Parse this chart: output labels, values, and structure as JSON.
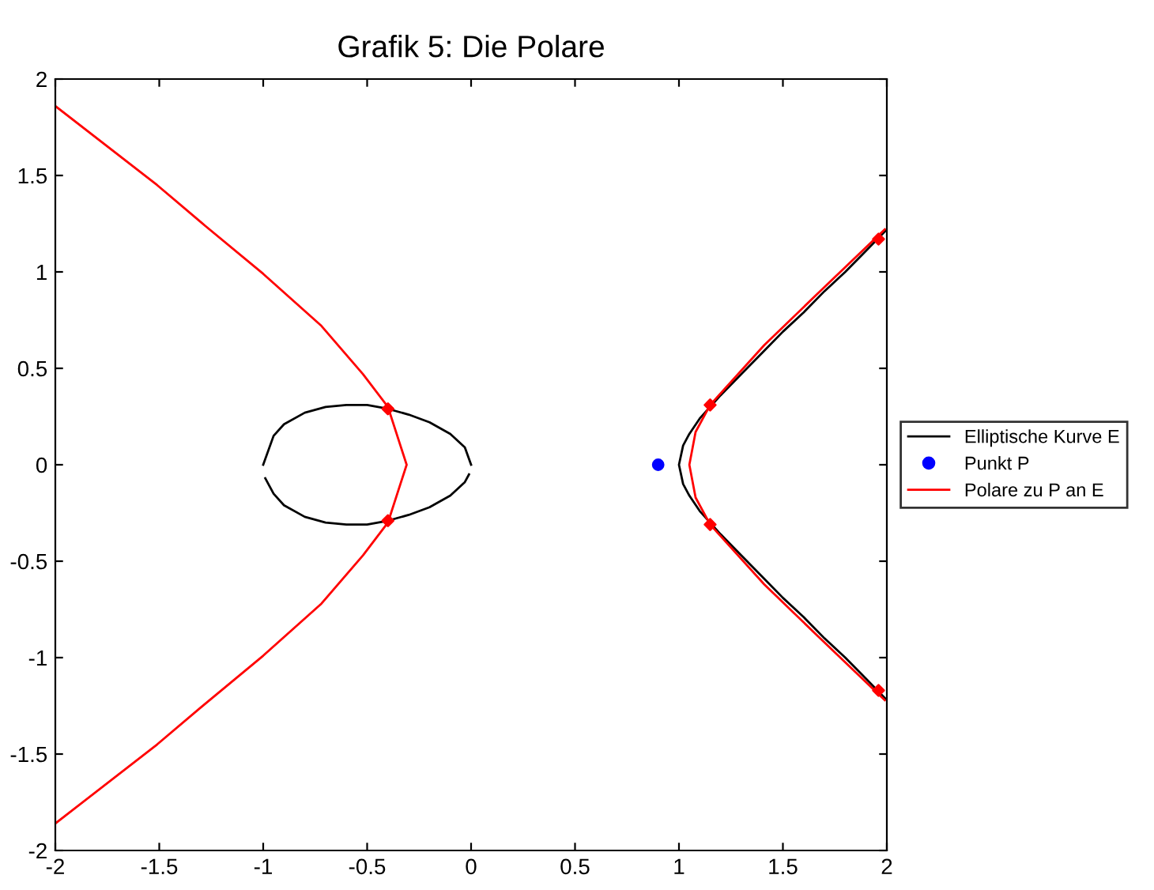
{
  "chart_data": {
    "type": "line",
    "title": "Grafik 5: Die Polare",
    "xlim": [
      -2,
      2
    ],
    "ylim": [
      -2,
      2
    ],
    "xticks": [
      -2,
      -1.5,
      -1,
      -0.5,
      0,
      0.5,
      1,
      1.5,
      2
    ],
    "yticks": [
      -2,
      -1.5,
      -1,
      -0.5,
      0,
      0.5,
      1,
      1.5,
      2
    ],
    "grid": false,
    "legend": "right",
    "series": [
      {
        "name": "Elliptische Kurve E",
        "type": "line",
        "color": "#000000",
        "marker": "none",
        "x": [
          -1,
          -0.95,
          -0.9,
          -0.8,
          -0.7,
          -0.6,
          -0.5,
          -0.4,
          -0.3,
          -0.2,
          -0.1,
          -0.03,
          0
        ],
        "values": [
          0,
          0.15,
          0.21,
          0.27,
          0.3,
          0.31,
          0.31,
          0.29,
          0.26,
          0.22,
          0.16,
          0.09,
          0
        ]
      },
      {
        "color": "#000000",
        "marker": "none",
        "x": [
          -0.99,
          -0.95,
          -0.9,
          -0.8,
          -0.7,
          -0.6,
          -0.5,
          -0.4,
          -0.3,
          -0.2,
          -0.1,
          -0.03,
          -0.01
        ],
        "values": [
          -0.07,
          -0.15,
          -0.21,
          -0.27,
          -0.3,
          -0.31,
          -0.31,
          -0.29,
          -0.26,
          -0.22,
          -0.16,
          -0.09,
          -0.05
        ]
      },
      {
        "type": "line",
        "color": "#000000",
        "marker": "none",
        "x": [
          2,
          1.9,
          1.8,
          1.7,
          1.6,
          1.5,
          1.4,
          1.3,
          1.2,
          1.1,
          1.05,
          1.02,
          1,
          1.02,
          1.05,
          1.1,
          1.2,
          1.3,
          1.4,
          1.5,
          1.6,
          1.7,
          1.8,
          1.9,
          2
        ],
        "values": [
          1.22,
          1.11,
          1.0,
          0.9,
          0.79,
          0.69,
          0.58,
          0.47,
          0.36,
          0.24,
          0.16,
          0.1,
          0,
          -0.1,
          -0.16,
          -0.24,
          -0.36,
          -0.47,
          -0.58,
          -0.69,
          -0.79,
          -0.9,
          -1.0,
          -1.11,
          -1.22
        ]
      },
      {
        "name": "Punkt P",
        "type": "scatter",
        "color": "#0000ff",
        "marker": "circle",
        "x": [
          0.9
        ],
        "values": [
          0
        ]
      },
      {
        "name": "Polare zu P an E",
        "color": "#ff0000",
        "marker": "none",
        "x": [
          -2,
          -1.51,
          -1.28,
          -1.0,
          -0.72,
          -0.52,
          -0.4,
          -0.31,
          -0.4,
          -0.52,
          -0.72,
          -1.0,
          -1.28,
          -1.51,
          -2,
          null,
          1.99,
          1.66,
          1.41,
          1.15,
          1.08,
          1.05,
          1.08,
          1.15,
          1.41,
          1.66,
          1.99
        ],
        "values": [
          1.86,
          1.45,
          1.24,
          0.99,
          0.72,
          0.47,
          0.3,
          0,
          -0.3,
          -0.47,
          -0.72,
          -0.99,
          -1.24,
          -1.45,
          -1.86,
          null,
          1.22,
          0.88,
          0.62,
          0.31,
          0.17,
          0,
          -0.17,
          -0.31,
          -0.62,
          -0.88,
          -1.22
        ]
      },
      {
        "type": "scatter",
        "color": "#ff0000",
        "marker": "diamond",
        "x": [
          -0.4,
          -0.4,
          1.15,
          1.15,
          1.96,
          1.96
        ],
        "values": [
          0.29,
          -0.29,
          0.31,
          -0.31,
          1.17,
          -1.17
        ]
      }
    ]
  }
}
